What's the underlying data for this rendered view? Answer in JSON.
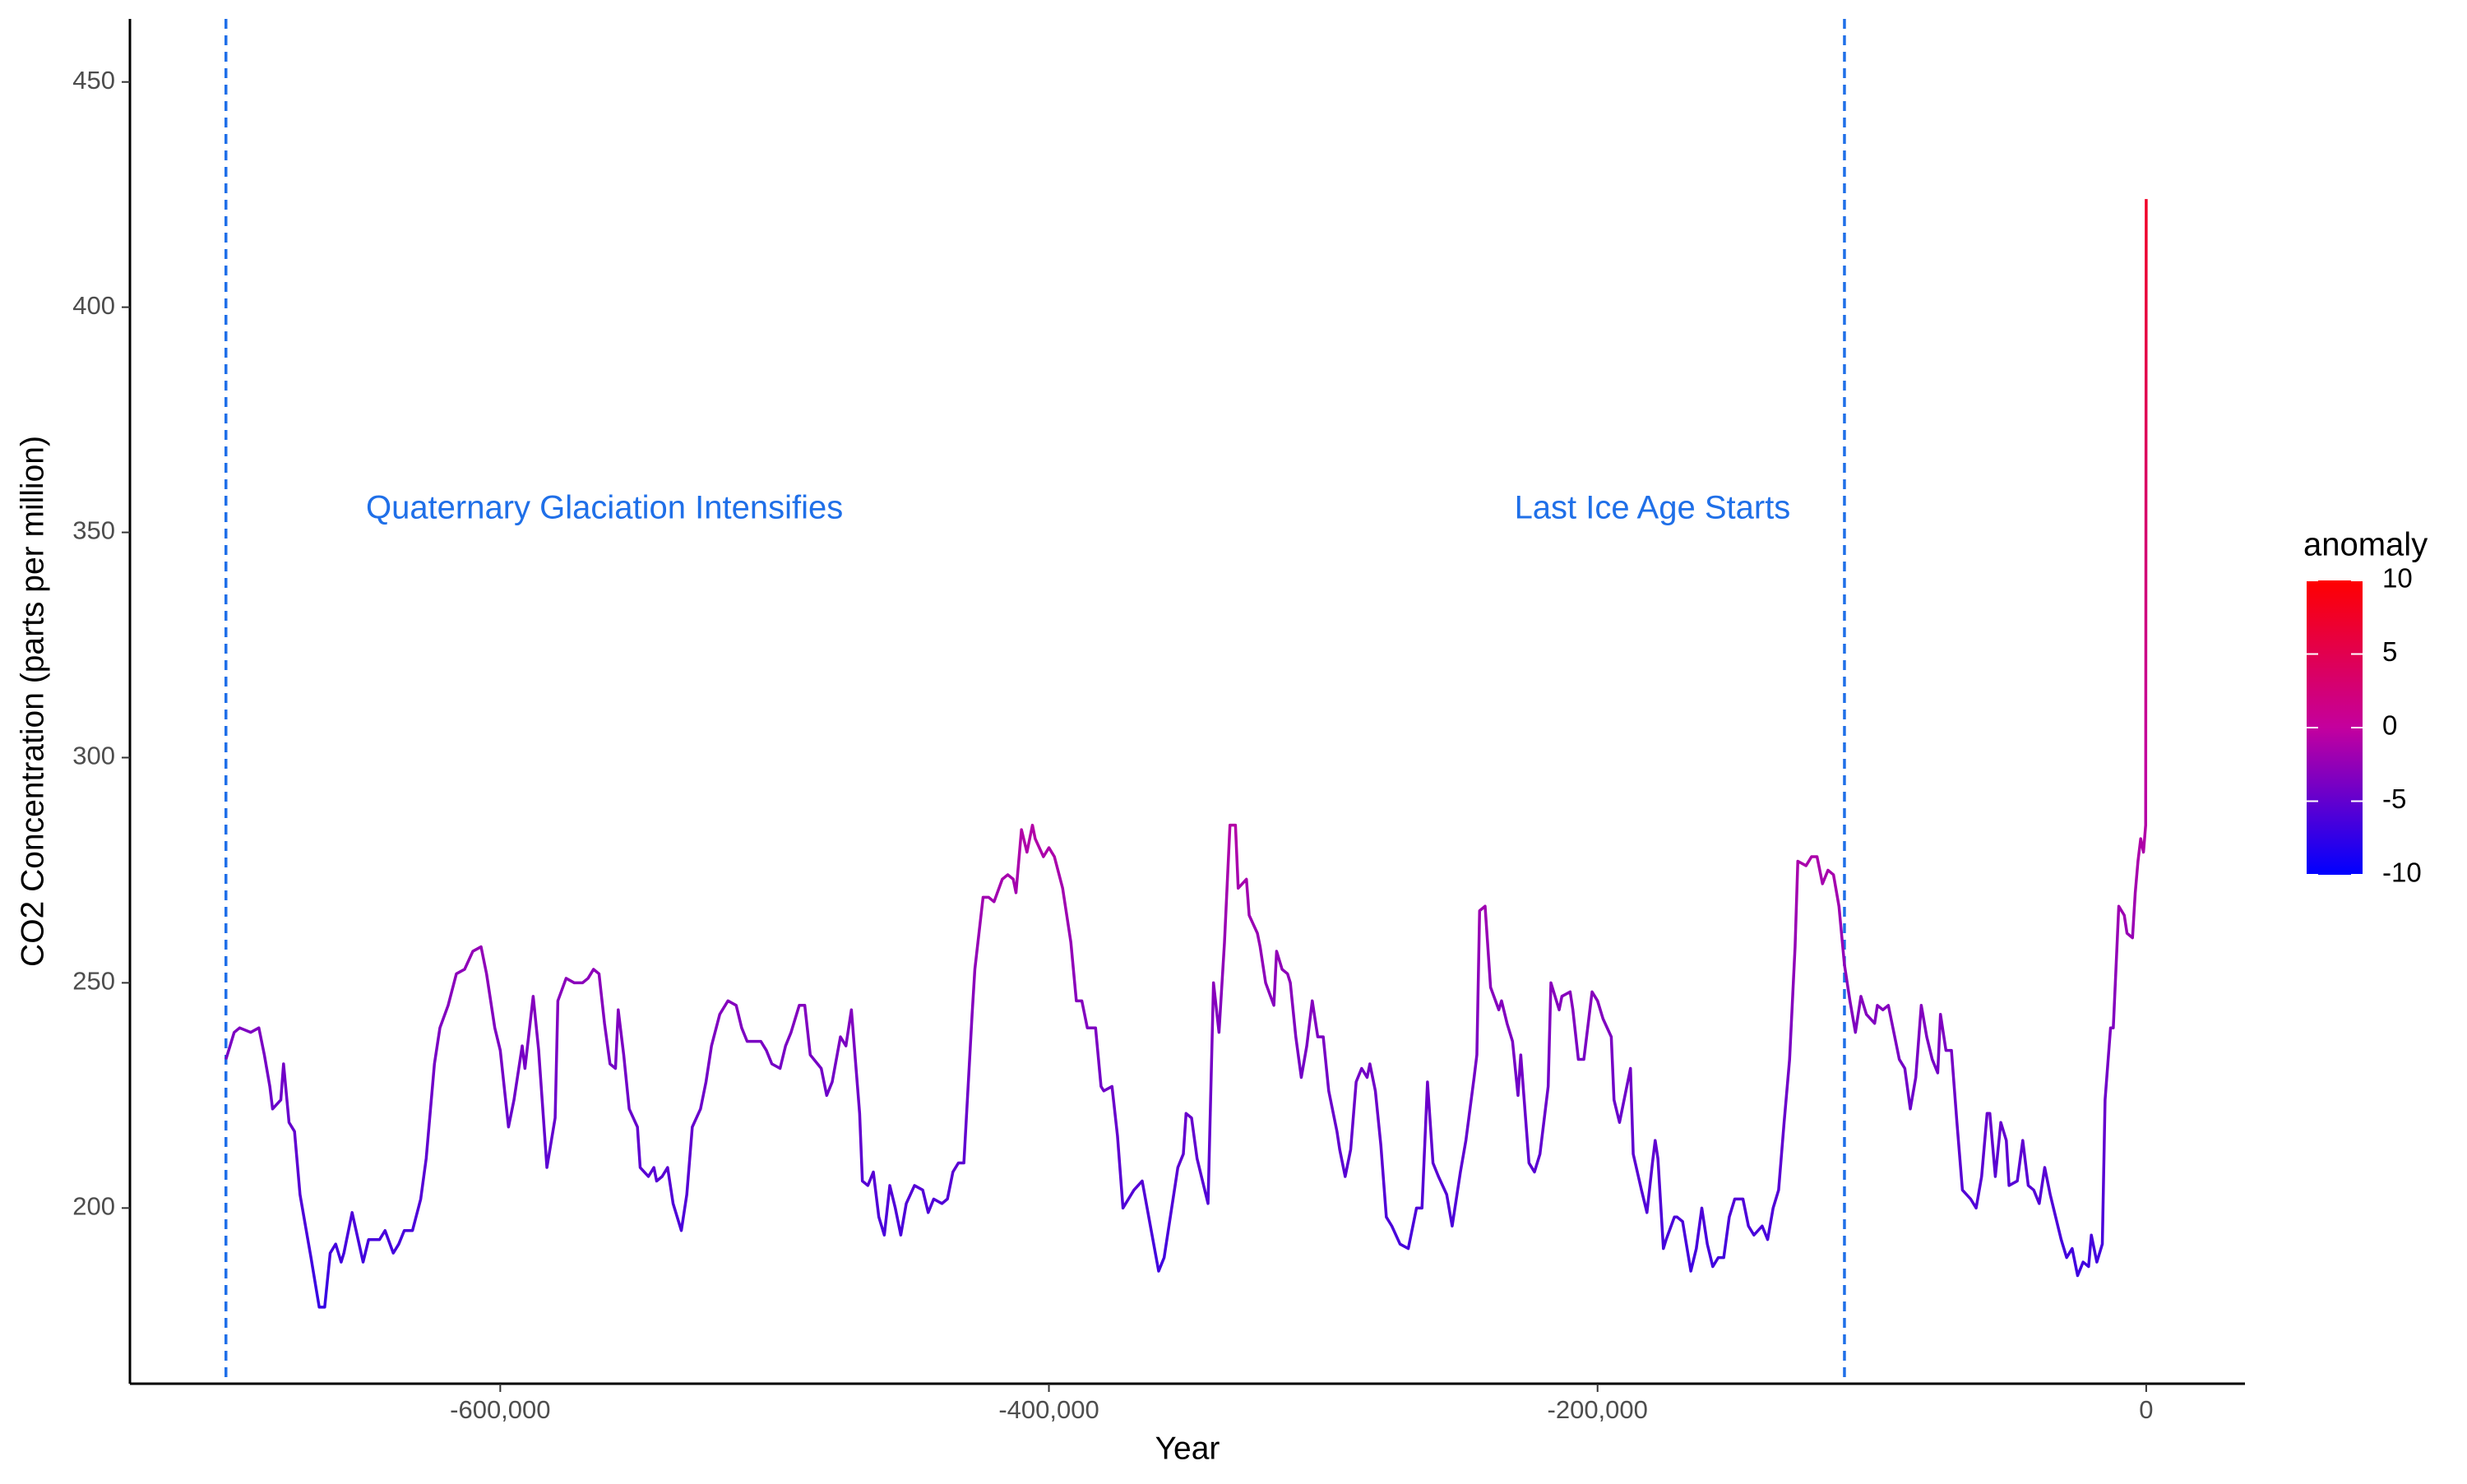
{
  "chart_data": {
    "type": "line",
    "x_label": "Year",
    "y_label": "CO2 Concentration (parts per million)",
    "xlim": [
      -735000,
      36000
    ],
    "ylim": [
      161,
      464
    ],
    "xticks": [
      {
        "value": -600000,
        "label": "-600,000"
      },
      {
        "value": -400000,
        "label": "-400,000"
      },
      {
        "value": -200000,
        "label": "-200,000"
      },
      0
    ],
    "yticks": [
      200,
      250,
      300,
      350,
      400,
      450
    ],
    "grid": false,
    "x": [
      -700000,
      -697000,
      -695000,
      -691000,
      -688000,
      -686000,
      -684000,
      -683000,
      -680000,
      -679000,
      -677000,
      -675000,
      -673000,
      -669000,
      -666000,
      -664000,
      -662000,
      -660000,
      -658000,
      -657000,
      -654000,
      -650000,
      -648000,
      -644000,
      -642000,
      -639000,
      -637000,
      -635000,
      -632000,
      -629000,
      -627000,
      -624000,
      -622000,
      -619000,
      -616000,
      -613000,
      -610000,
      -607000,
      -605000,
      -602000,
      -600000,
      -597000,
      -595000,
      -592000,
      -591000,
      -588000,
      -586000,
      -583000,
      -580000,
      -579000,
      -576000,
      -573000,
      -570000,
      -568000,
      -566000,
      -564000,
      -562000,
      -560000,
      -558000,
      -557000,
      -555000,
      -553000,
      -550000,
      -549000,
      -546000,
      -544000,
      -543000,
      -541000,
      -539000,
      -537000,
      -534000,
      -532000,
      -530000,
      -527000,
      -525000,
      -523000,
      -520000,
      -517000,
      -514000,
      -512000,
      -510000,
      -507000,
      -505000,
      -503000,
      -501000,
      -498000,
      -496000,
      -494000,
      -491000,
      -489000,
      -487000,
      -483000,
      -481000,
      -479000,
      -476000,
      -474000,
      -472000,
      -469000,
      -468000,
      -466000,
      -464000,
      -462000,
      -460000,
      -458000,
      -456000,
      -454000,
      -452000,
      -449000,
      -446000,
      -444000,
      -442000,
      -439000,
      -437000,
      -435000,
      -433000,
      -431000,
      -428000,
      -427000,
      -424000,
      -422000,
      -420000,
      -417000,
      -415000,
      -413000,
      -412000,
      -410000,
      -408000,
      -406000,
      -405000,
      -402000,
      -400000,
      -398000,
      -395000,
      -392000,
      -390000,
      -388000,
      -386000,
      -383000,
      -381000,
      -380000,
      -377000,
      -375000,
      -373000,
      -370000,
      -369000,
      -366000,
      -363000,
      -360000,
      -358000,
      -354000,
      -353000,
      -351000,
      -350000,
      -348000,
      -346000,
      -342000,
      -340000,
      -338000,
      -336000,
      -334000,
      -332000,
      -331000,
      -328000,
      -327000,
      -324000,
      -323000,
      -321000,
      -318000,
      -317000,
      -315000,
      -313000,
      -312000,
      -310000,
      -308000,
      -306000,
      -304000,
      -302000,
      -300000,
      -298000,
      -295000,
      -294000,
      -292000,
      -290000,
      -288000,
      -286000,
      -284000,
      -283000,
      -281000,
      -279000,
      -277000,
      -275000,
      -272000,
      -269000,
      -266000,
      -264000,
      -262000,
      -260000,
      -258000,
      -255000,
      -253000,
      -250000,
      -248000,
      -245000,
      -244000,
      -243000,
      -241000,
      -239000,
      -236000,
      -235000,
      -233000,
      -231000,
      -229000,
      -228000,
      -225000,
      -223000,
      -221000,
      -218000,
      -217000,
      -214000,
      -213000,
      -210000,
      -209000,
      -207000,
      -205000,
      -202000,
      -200000,
      -198000,
      -195000,
      -194000,
      -192000,
      -190000,
      -188000,
      -187000,
      -184000,
      -182000,
      -180000,
      -179000,
      -178000,
      -176000,
      -175000,
      -172000,
      -171000,
      -169000,
      -166000,
      -164000,
      -162000,
      -160000,
      -158000,
      -156000,
      -154000,
      -152000,
      -150000,
      -147000,
      -145000,
      -143000,
      -140000,
      -138000,
      -136000,
      -134000,
      -132000,
      -130000,
      -128000,
      -127000,
      -124000,
      -122000,
      -120000,
      -118000,
      -116000,
      -114000,
      -112000,
      -110000,
      -108000,
      -106000,
      -104000,
      -102000,
      -99000,
      -98000,
      -96000,
      -94000,
      -92000,
      -90000,
      -88000,
      -86000,
      -84000,
      -82000,
      -80000,
      -78000,
      -76000,
      -75000,
      -73000,
      -71000,
      -69000,
      -67000,
      -64000,
      -62000,
      -60000,
      -58000,
      -57000,
      -55000,
      -53000,
      -51000,
      -50000,
      -47000,
      -45000,
      -43000,
      -41000,
      -39000,
      -37000,
      -35000,
      -33000,
      -31000,
      -29000,
      -27000,
      -25000,
      -23000,
      -21000,
      -20000,
      -18000,
      -16000,
      -15000,
      -13000,
      -12000,
      -10000,
      -8000,
      -7000,
      -5000,
      -4000,
      -3000,
      -2000,
      -1000,
      -200,
      0
    ],
    "values": [
      233,
      239,
      240,
      239,
      240,
      234,
      227,
      222,
      224,
      232,
      219,
      217,
      203,
      189,
      178,
      178,
      190,
      192,
      188,
      190,
      199,
      188,
      193,
      193,
      195,
      190,
      192,
      195,
      195,
      202,
      211,
      232,
      240,
      245,
      252,
      253,
      257,
      258,
      252,
      240,
      235,
      218,
      224,
      236,
      231,
      247,
      235,
      209,
      220,
      246,
      251,
      250,
      250,
      251,
      253,
      252,
      241,
      232,
      231,
      244,
      234,
      222,
      218,
      209,
      207,
      209,
      206,
      207,
      209,
      201,
      195,
      203,
      218,
      222,
      228,
      236,
      243,
      246,
      245,
      240,
      237,
      237,
      237,
      235,
      232,
      231,
      236,
      239,
      245,
      245,
      234,
      231,
      225,
      228,
      238,
      236,
      244,
      221,
      206,
      205,
      208,
      198,
      194,
      205,
      200,
      194,
      201,
      205,
      204,
      199,
      202,
      201,
      202,
      208,
      210,
      210,
      243,
      253,
      269,
      269,
      268,
      273,
      274,
      273,
      270,
      284,
      279,
      285,
      282,
      278,
      280,
      278,
      271,
      259,
      246,
      246,
      240,
      240,
      227,
      226,
      227,
      216,
      200,
      203,
      204,
      206,
      196,
      186,
      189,
      205,
      209,
      212,
      221,
      220,
      211,
      201,
      250,
      239,
      259,
      285,
      285,
      271,
      273,
      265,
      261,
      258,
      250,
      245,
      257,
      253,
      252,
      250,
      238,
      229,
      236,
      246,
      238,
      238,
      226,
      217,
      213,
      207,
      213,
      228,
      231,
      229,
      232,
      226,
      214,
      198,
      196,
      192,
      191,
      200,
      200,
      228,
      210,
      207,
      203,
      196,
      208,
      215,
      229,
      234,
      266,
      267,
      249,
      244,
      246,
      241,
      237,
      225,
      234,
      210,
      208,
      212,
      227,
      250,
      244,
      247,
      248,
      244,
      233,
      233,
      248,
      246,
      242,
      238,
      224,
      219,
      225,
      231,
      212,
      204,
      199,
      210,
      215,
      211,
      191,
      193,
      198,
      198,
      197,
      186,
      191,
      200,
      192,
      187,
      189,
      189,
      198,
      202,
      202,
      196,
      194,
      196,
      193,
      200,
      204,
      219,
      233,
      258,
      277,
      276,
      278,
      278,
      272,
      275,
      274,
      267,
      254,
      246,
      239,
      247,
      243,
      241,
      245,
      244,
      245,
      239,
      233,
      231,
      222,
      229,
      245,
      238,
      233,
      230,
      243,
      235,
      235,
      219,
      204,
      202,
      200,
      207,
      221,
      221,
      207,
      219,
      215,
      205,
      206,
      215,
      205,
      204,
      201,
      209,
      203,
      198,
      193,
      189,
      191,
      185,
      188,
      187,
      194,
      188,
      192,
      224,
      240,
      240,
      267,
      265,
      261,
      260,
      270,
      277,
      282,
      279,
      285,
      424
    ],
    "reference_lines": {
      "x": [
        -700000,
        -110000
      ],
      "color": "#1f6fe8",
      "style": "dashed"
    },
    "annotations": [
      {
        "text": "Quaternary Glaciation Intensifies",
        "x": -562000,
        "y": 355
      },
      {
        "text": "Last Ice Age Starts",
        "x": -180000,
        "y": 355
      }
    ],
    "colorbar": {
      "title": "anomaly",
      "lim": [
        -10,
        10
      ],
      "ticks": [
        10,
        5,
        0,
        -5,
        -10
      ],
      "colors": [
        "#0000ff",
        "#c4009e",
        "#ff0000"
      ]
    }
  }
}
